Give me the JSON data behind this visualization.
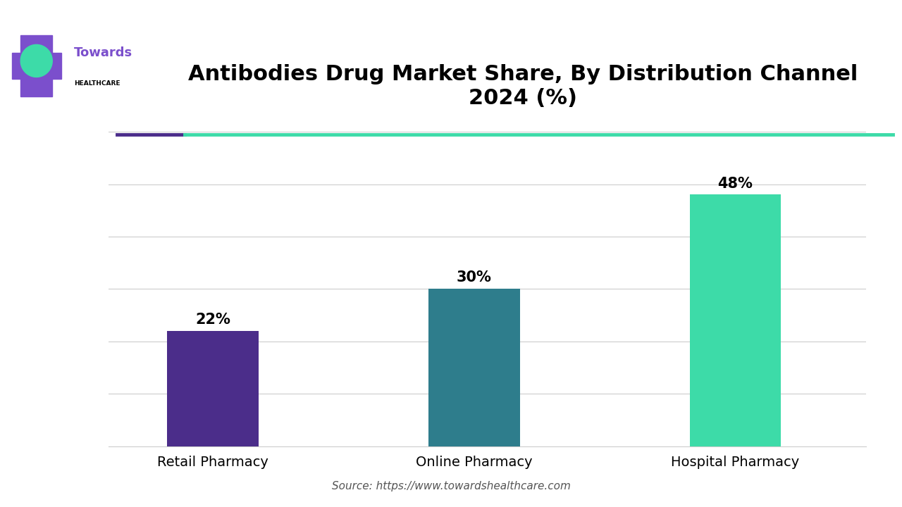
{
  "title": "Antibodies Drug Market Share, By Distribution Channel\n2024 (%)",
  "categories": [
    "Retail Pharmacy",
    "Online Pharmacy",
    "Hospital Pharmacy"
  ],
  "values": [
    22,
    30,
    48
  ],
  "bar_colors": [
    "#4B2D8A",
    "#2E7D8C",
    "#3DDBA8"
  ],
  "value_labels": [
    "22%",
    "30%",
    "48%"
  ],
  "source_text": "Source: https://www.towardshealthcare.com",
  "background_color": "#ffffff",
  "title_fontsize": 22,
  "label_fontsize": 14,
  "value_fontsize": 15,
  "source_fontsize": 11,
  "ylim": [
    0,
    60
  ],
  "bar_width": 0.35,
  "header_line_purple": "#4B2D8A",
  "header_line_teal": "#3DDBA8",
  "grid_color": "#cccccc",
  "logo_towards_color": "#7B4FCC",
  "logo_teal_color": "#3DDBA8",
  "logo_cross_color": "#7B4FCC"
}
